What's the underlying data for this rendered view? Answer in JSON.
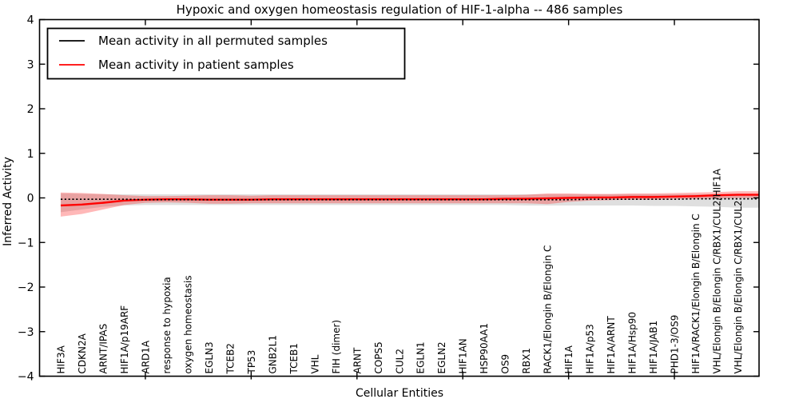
{
  "chart_data": {
    "type": "line",
    "title": "Hypoxic and oxygen homeostasis regulation of HIF-1-alpha -- 486 samples",
    "xlabel": "Cellular Entities",
    "ylabel": "Inferred Activity",
    "ylim": [
      -4,
      4
    ],
    "xlim": [
      0,
      34
    ],
    "ytick_values": [
      -4,
      -3,
      -2,
      -1,
      0,
      1,
      2,
      3,
      4
    ],
    "ytick_labels": [
      "−4",
      "−3",
      "−2",
      "−1",
      "0",
      "1",
      "2",
      "3",
      "4"
    ],
    "xtick_major_units": [
      5,
      10,
      15,
      20,
      25,
      30
    ],
    "grid": false,
    "legend_position": "upper left",
    "categories": [
      "HIF3A",
      "CDKN2A",
      "ARNT/IPAS",
      "HIF1A/p19ARF",
      "ARD1A",
      "response to hypoxia",
      "oxygen homeostasis",
      "EGLN3",
      "TCEB2",
      "TP53",
      "GNB2L1",
      "TCEB1",
      "VHL",
      "FIH (dimer)",
      "ARNT",
      "COPS5",
      "CUL2",
      "EGLN1",
      "EGLN2",
      "HIF1AN",
      "HSP90AA1",
      "OS9",
      "RBX1",
      "RACK1/Elongin B/Elongin C",
      "HIF1A",
      "HIF1A/p53",
      "HIF1A/ARNT",
      "HIF1A/Hsp90",
      "HIF1A/JAB1",
      "PHD1-3/OS9",
      "HIF1A/RACK1/Elongin B/Elongin C",
      "VHL/Elongin B/Elongin C/RBX1/CUL2/HIF1A",
      "VHL/Elongin B/Elongin C/RBX1/CUL2"
    ],
    "series": [
      {
        "name": "Mean activity in all permuted samples",
        "color": "#000000",
        "style": "dashed",
        "values": [
          -0.03,
          -0.03,
          -0.03,
          -0.03,
          -0.04,
          -0.04,
          -0.04,
          -0.04,
          -0.04,
          -0.04,
          -0.04,
          -0.04,
          -0.04,
          -0.04,
          -0.04,
          -0.04,
          -0.04,
          -0.04,
          -0.04,
          -0.04,
          -0.04,
          -0.04,
          -0.04,
          -0.04,
          -0.04,
          -0.03,
          -0.03,
          -0.03,
          -0.03,
          -0.03,
          -0.02,
          -0.02,
          -0.02
        ]
      },
      {
        "name": "Mean activity in patient samples",
        "color": "#ff0000",
        "style": "solid",
        "values": [
          -0.17,
          -0.15,
          -0.11,
          -0.06,
          -0.04,
          -0.03,
          -0.03,
          -0.04,
          -0.04,
          -0.04,
          -0.03,
          -0.03,
          -0.03,
          -0.03,
          -0.03,
          -0.03,
          -0.03,
          -0.03,
          -0.03,
          -0.03,
          -0.03,
          -0.02,
          -0.02,
          -0.01,
          0.0,
          0.01,
          0.01,
          0.02,
          0.02,
          0.03,
          0.04,
          0.06,
          0.07
        ]
      }
    ],
    "bands": [
      {
        "name": "permuted-samples-std-band",
        "color": "#aaaaaa",
        "opacity": 0.38,
        "upper": [
          0.1,
          0.09,
          0.08,
          0.08,
          0.08,
          0.08,
          0.08,
          0.08,
          0.08,
          0.08,
          0.08,
          0.08,
          0.08,
          0.08,
          0.08,
          0.08,
          0.08,
          0.08,
          0.08,
          0.08,
          0.08,
          0.08,
          0.08,
          0.08,
          0.08,
          0.08,
          0.08,
          0.08,
          0.08,
          0.08,
          0.08,
          0.08,
          0.08
        ],
        "lower": [
          -0.32,
          -0.26,
          -0.2,
          -0.17,
          -0.16,
          -0.16,
          -0.16,
          -0.16,
          -0.16,
          -0.16,
          -0.16,
          -0.16,
          -0.16,
          -0.16,
          -0.16,
          -0.16,
          -0.16,
          -0.16,
          -0.16,
          -0.16,
          -0.16,
          -0.16,
          -0.17,
          -0.17,
          -0.17,
          -0.17,
          -0.17,
          -0.17,
          -0.18,
          -0.18,
          -0.19,
          -0.2,
          -0.22
        ]
      },
      {
        "name": "patient-samples-std-band",
        "color": "#ff0000",
        "opacity": 0.28,
        "upper": [
          0.12,
          0.11,
          0.09,
          0.06,
          0.04,
          0.04,
          0.05,
          0.06,
          0.06,
          0.05,
          0.06,
          0.06,
          0.06,
          0.06,
          0.06,
          0.06,
          0.06,
          0.06,
          0.06,
          0.06,
          0.06,
          0.06,
          0.07,
          0.1,
          0.1,
          0.09,
          0.09,
          0.1,
          0.1,
          0.11,
          0.12,
          0.13,
          0.15
        ],
        "lower": [
          -0.42,
          -0.36,
          -0.26,
          -0.16,
          -0.11,
          -0.1,
          -0.11,
          -0.13,
          -0.13,
          -0.12,
          -0.12,
          -0.12,
          -0.12,
          -0.12,
          -0.12,
          -0.12,
          -0.12,
          -0.12,
          -0.12,
          -0.12,
          -0.12,
          -0.12,
          -0.12,
          -0.14,
          -0.09,
          -0.06,
          -0.05,
          -0.04,
          -0.04,
          -0.03,
          -0.02,
          -0.01,
          0.0
        ]
      }
    ],
    "legend": {
      "items": [
        {
          "label": "Mean activity in all permuted samples",
          "color": "#000000"
        },
        {
          "label": "Mean activity in patient samples",
          "color": "#ff0000"
        }
      ]
    }
  }
}
